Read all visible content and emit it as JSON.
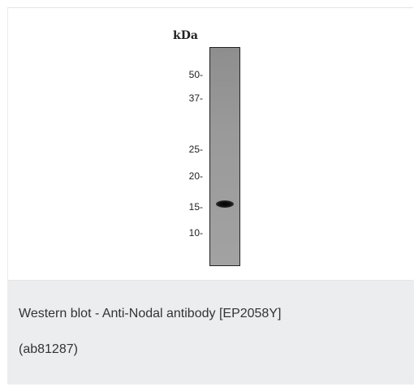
{
  "blot": {
    "unit_label": "kDa",
    "markers": [
      {
        "label": "50-",
        "kda": 50
      },
      {
        "label": "37-",
        "kda": 37
      },
      {
        "label": "25-",
        "kda": 25
      },
      {
        "label": "20-",
        "kda": 20
      },
      {
        "label": "15-",
        "kda": 15
      },
      {
        "label": "10-",
        "kda": 10
      }
    ],
    "band_kda": 15
  },
  "caption": {
    "line1": "Western blot - Anti-Nodal antibody [EP2058Y]",
    "line2": "(ab81287)"
  }
}
